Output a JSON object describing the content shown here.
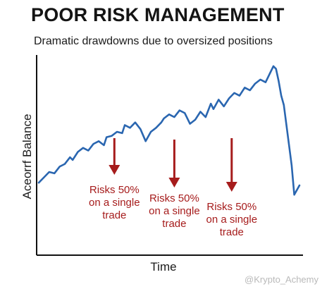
{
  "chart_data": {
    "type": "line",
    "title": "POOR RISK MANAGEMENT",
    "subtitle": "Dramatic drawdowns due to oversized positions",
    "xlabel": "Time",
    "ylabel": "Aceorrf Balance",
    "grid": false,
    "line_color": "#2a66b0",
    "annotation_color": "#a61c1c",
    "series": [
      {
        "x": [
          0,
          2,
          4,
          6,
          8,
          10,
          12,
          13,
          15,
          17,
          19,
          21,
          23,
          25,
          26,
          28,
          30,
          32,
          33,
          35,
          37,
          39,
          41,
          43,
          45,
          47,
          48,
          50,
          52,
          54,
          56,
          58,
          60,
          62,
          64,
          66,
          67,
          69,
          71,
          73,
          75,
          77,
          79,
          81,
          83,
          85,
          87,
          89,
          90,
          91,
          92,
          93,
          94,
          95,
          96,
          97,
          98,
          100
        ],
        "y": [
          12,
          16,
          20,
          19,
          24,
          26,
          31,
          29,
          35,
          38,
          36,
          41,
          43,
          40,
          46,
          47,
          50,
          49,
          55,
          53,
          57,
          52,
          43,
          50,
          53,
          57,
          60,
          63,
          61,
          66,
          64,
          56,
          59,
          65,
          61,
          71,
          67,
          74,
          69,
          75,
          79,
          77,
          83,
          81,
          86,
          89,
          87,
          95,
          99,
          97,
          88,
          77,
          70,
          55,
          40,
          25,
          3,
          10
        ]
      }
    ],
    "xlim": [
      0,
      100
    ],
    "ylim": [
      0,
      100
    ],
    "annotations": [
      {
        "x": 29,
        "text": [
          "Risks 50%",
          "on a single",
          "trade"
        ]
      },
      {
        "x": 52,
        "text": [
          "Risks 50%",
          "on a single",
          "trade"
        ]
      },
      {
        "x": 74,
        "text": [
          "Risks 50%",
          "on a single",
          "trade"
        ]
      }
    ]
  },
  "watermark": "@Krypto_Achemy"
}
